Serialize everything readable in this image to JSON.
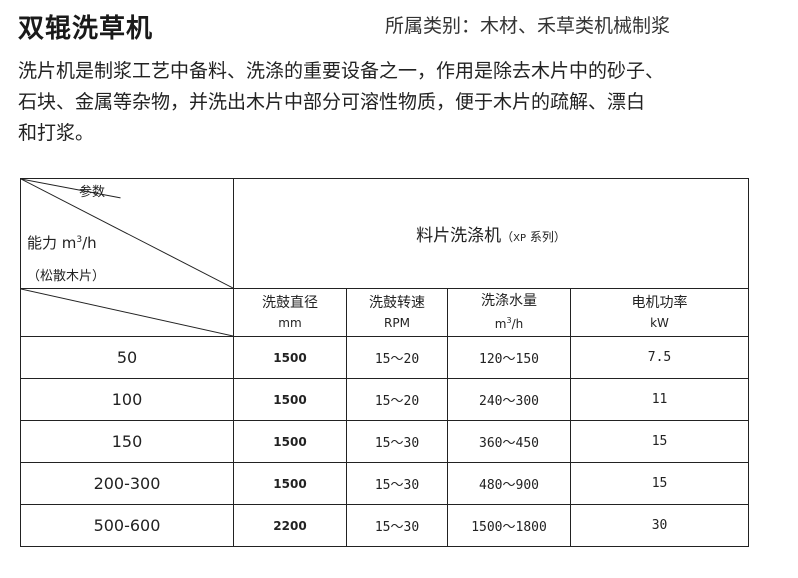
{
  "title": "双辊洗草机",
  "category": "所属类别：木材、禾草类机械制浆",
  "description": [
    "洗片机是制浆工艺中备料、洗涤的重要设备之一，作用是除去木片中的砂子、",
    "石块、金属等杂物，并洗出木片中部分可溶性物质，便于木片的疏解、漂白",
    "和打浆。"
  ],
  "table": {
    "header_param": "参数",
    "header_capacity_label": "能力 m",
    "header_capacity_sup": "3",
    "header_capacity_unit": "/h",
    "header_note": "（松散木片）",
    "machine_name": "料片洗涤机",
    "machine_series_open": "（",
    "machine_series_code": "XP",
    "machine_series_rest": " 系列）",
    "columns": [
      {
        "name": "洗鼓直径",
        "unit": "mm"
      },
      {
        "name": "洗鼓转速",
        "unit": "RPM"
      },
      {
        "name": "洗涤水量",
        "unit_main": "m",
        "unit_sup": "3",
        "unit_tail": "/h"
      },
      {
        "name": "电机功率",
        "unit": "kW"
      }
    ],
    "rows": [
      {
        "capacity": "50",
        "diameter": "1500",
        "speed": "15～20",
        "water": "120～150",
        "power": "7.5"
      },
      {
        "capacity": "100",
        "diameter": "1500",
        "speed": "15～20",
        "water": "240～300",
        "power": "11"
      },
      {
        "capacity": "150",
        "diameter": "1500",
        "speed": "15～30",
        "water": "360～450",
        "power": "15"
      },
      {
        "capacity": "200-300",
        "diameter": "1500",
        "speed": "15～30",
        "water": "480～900",
        "power": "15"
      },
      {
        "capacity": "500-600",
        "diameter": "2200",
        "speed": "15～30",
        "water": "1500～1800",
        "power": "30"
      }
    ]
  }
}
